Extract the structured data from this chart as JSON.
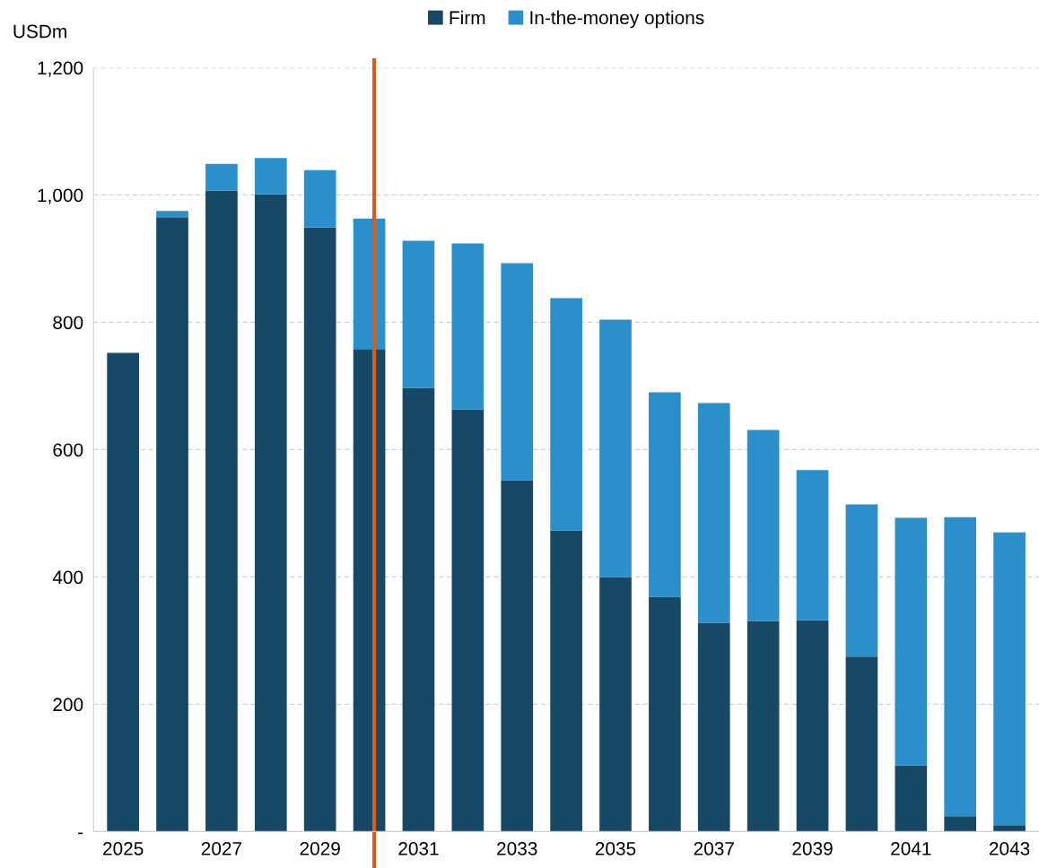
{
  "chart_data": {
    "type": "bar",
    "stacked": true,
    "ylabel": "USDm",
    "x": [
      2025,
      2026,
      2027,
      2028,
      2029,
      2030,
      2031,
      2032,
      2033,
      2034,
      2035,
      2036,
      2037,
      2038,
      2039,
      2040,
      2041,
      2042,
      2043
    ],
    "series": [
      {
        "name": "Firm",
        "color": "#174866",
        "values": [
          752,
          965,
          1007,
          1001,
          949,
          758,
          697,
          663,
          552,
          473,
          400,
          369,
          328,
          331,
          332,
          275,
          104,
          24,
          10
        ]
      },
      {
        "name": "In-the-money options",
        "color": "#2b8fcb",
        "values": [
          0,
          10,
          42,
          57,
          90,
          205,
          231,
          261,
          341,
          365,
          404,
          321,
          345,
          300,
          236,
          239,
          389,
          470,
          460
        ]
      }
    ],
    "xlim": [
      2024.4,
      2043.6
    ],
    "xticks": [
      2025,
      2027,
      2029,
      2031,
      2033,
      2035,
      2037,
      2039,
      2041,
      2043
    ],
    "ylim": [
      0,
      1200
    ],
    "yticks": [
      {
        "value": 0,
        "label": "-"
      },
      200,
      400,
      600,
      800,
      {
        "value": 1000,
        "label": "1,000"
      },
      {
        "value": 1200,
        "label": "1,200"
      }
    ],
    "grid": "y",
    "legend": "top",
    "ref_lines": [
      {
        "axis": "x",
        "value": 2030.1,
        "color": "#e05a10"
      }
    ]
  }
}
